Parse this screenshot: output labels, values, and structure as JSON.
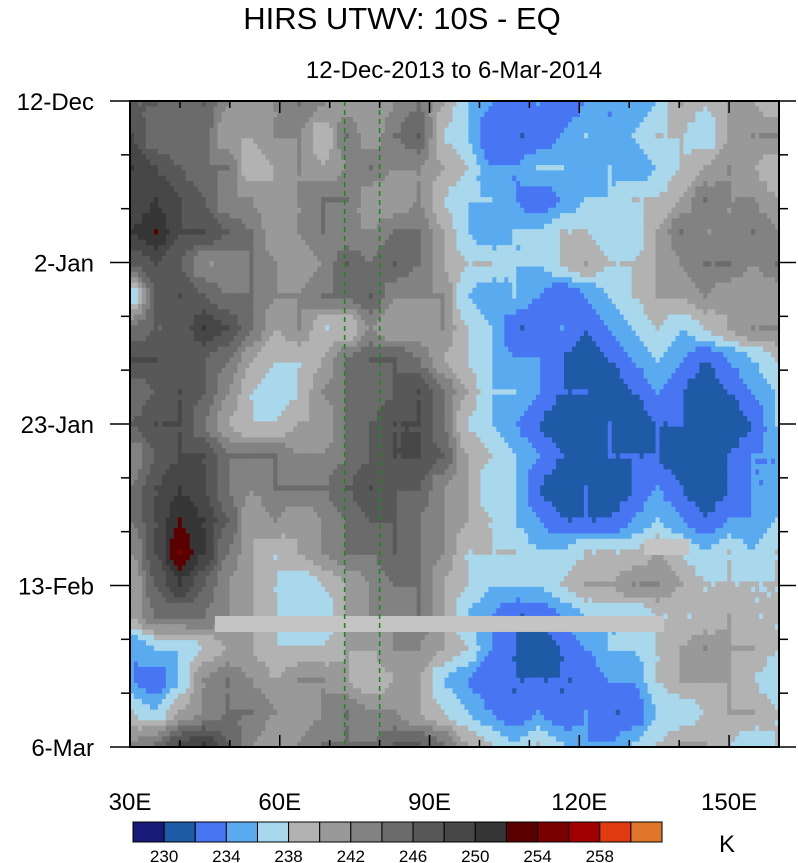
{
  "chart_data": {
    "type": "heatmap",
    "title": "HIRS UTWV: 10S - EQ",
    "subtitle": "12-Dec-2013 to 6-Mar-2014",
    "xlabel": "",
    "ylabel": "",
    "x_range": [
      30,
      160
    ],
    "x_ticks": [
      {
        "value": 30,
        "label": "30E"
      },
      {
        "value": 60,
        "label": "60E"
      },
      {
        "value": 90,
        "label": "90E"
      },
      {
        "value": 120,
        "label": "120E"
      },
      {
        "value": 150,
        "label": "150E"
      }
    ],
    "y_range_days": [
      0,
      84
    ],
    "y_ticks": [
      {
        "day": 0,
        "label": "12-Dec"
      },
      {
        "day": 21,
        "label": "2-Jan"
      },
      {
        "day": 42,
        "label": "23-Jan"
      },
      {
        "day": 63,
        "label": "13-Feb"
      },
      {
        "day": 84,
        "label": "6-Mar"
      }
    ],
    "reference_lines_lon": [
      73,
      80
    ],
    "missing_bars": [
      {
        "lon_start": 47,
        "lon_end": 137,
        "day": 68
      },
      {
        "lon_start": 133,
        "lon_end": 142,
        "day": 58
      }
    ],
    "colorbar": {
      "unit": "K",
      "levels": [
        228,
        230,
        232,
        234,
        236,
        238,
        240,
        242,
        244,
        246,
        248,
        250,
        252,
        254,
        256,
        258,
        260
      ],
      "labeled_levels": [
        "230",
        "234",
        "238",
        "242",
        "246",
        "250",
        "254",
        "258"
      ],
      "colors": [
        "#1a1a7a",
        "#1f5aa6",
        "#4876f2",
        "#5aaaf0",
        "#a9d8ec",
        "#b2b2b2",
        "#999999",
        "#828282",
        "#6b6b6b",
        "#585858",
        "#474747",
        "#363636",
        "#5a0000",
        "#7a0000",
        "#a00000",
        "#e03a10",
        "#e0762a"
      ]
    },
    "field": [
      [
        246,
        246,
        244,
        246,
        242,
        240,
        242,
        244,
        242,
        241,
        240,
        242,
        244,
        240,
        236,
        234,
        232,
        234,
        232,
        234,
        234,
        234,
        236,
        240,
        238,
        240,
        240,
        238
      ],
      [
        248,
        244,
        244,
        245,
        240,
        240,
        242,
        242,
        238,
        244,
        240,
        244,
        246,
        238,
        236,
        232,
        232,
        232,
        234,
        236,
        234,
        236,
        238,
        238,
        236,
        240,
        242,
        242
      ],
      [
        250,
        248,
        246,
        244,
        244,
        238,
        240,
        242,
        240,
        242,
        244,
        242,
        242,
        240,
        238,
        234,
        234,
        236,
        236,
        234,
        236,
        234,
        236,
        238,
        240,
        242,
        240,
        238
      ],
      [
        248,
        250,
        248,
        246,
        242,
        242,
        240,
        242,
        244,
        244,
        240,
        240,
        242,
        238,
        236,
        236,
        234,
        232,
        234,
        236,
        236,
        238,
        238,
        240,
        244,
        242,
        242,
        240
      ],
      [
        250,
        252,
        248,
        248,
        246,
        244,
        240,
        242,
        244,
        242,
        242,
        244,
        244,
        240,
        236,
        234,
        236,
        236,
        238,
        238,
        236,
        236,
        240,
        244,
        242,
        242,
        244,
        242
      ],
      [
        246,
        248,
        246,
        242,
        242,
        244,
        242,
        240,
        242,
        246,
        244,
        246,
        244,
        240,
        238,
        238,
        236,
        236,
        238,
        240,
        238,
        238,
        240,
        242,
        244,
        244,
        242,
        244
      ],
      [
        236,
        246,
        248,
        246,
        244,
        244,
        242,
        242,
        244,
        244,
        246,
        242,
        242,
        242,
        236,
        234,
        236,
        234,
        232,
        234,
        236,
        238,
        240,
        240,
        242,
        240,
        240,
        240
      ],
      [
        244,
        246,
        246,
        250,
        248,
        244,
        240,
        242,
        238,
        238,
        242,
        240,
        240,
        242,
        238,
        236,
        232,
        232,
        234,
        232,
        234,
        236,
        238,
        236,
        238,
        240,
        242,
        242
      ],
      [
        248,
        248,
        246,
        246,
        244,
        240,
        238,
        238,
        240,
        244,
        246,
        246,
        244,
        240,
        238,
        236,
        234,
        234,
        232,
        230,
        232,
        234,
        236,
        234,
        232,
        234,
        236,
        238
      ],
      [
        244,
        246,
        248,
        246,
        242,
        238,
        236,
        238,
        242,
        244,
        244,
        246,
        248,
        244,
        240,
        236,
        236,
        234,
        232,
        232,
        230,
        232,
        234,
        232,
        230,
        232,
        234,
        236
      ],
      [
        246,
        248,
        248,
        244,
        240,
        238,
        238,
        240,
        240,
        244,
        246,
        248,
        248,
        244,
        238,
        236,
        234,
        232,
        230,
        230,
        232,
        230,
        232,
        232,
        230,
        230,
        232,
        236
      ],
      [
        242,
        246,
        248,
        248,
        244,
        244,
        244,
        242,
        242,
        244,
        246,
        248,
        248,
        246,
        240,
        238,
        236,
        234,
        232,
        230,
        232,
        232,
        232,
        230,
        230,
        232,
        234,
        234
      ],
      [
        244,
        248,
        250,
        248,
        244,
        242,
        244,
        244,
        244,
        246,
        248,
        246,
        246,
        242,
        240,
        236,
        236,
        232,
        230,
        232,
        230,
        232,
        234,
        232,
        230,
        232,
        234,
        234
      ],
      [
        244,
        248,
        252,
        250,
        246,
        240,
        242,
        240,
        242,
        244,
        246,
        246,
        244,
        242,
        240,
        238,
        236,
        234,
        232,
        232,
        232,
        234,
        236,
        234,
        232,
        234,
        234,
        236
      ],
      [
        242,
        248,
        254,
        250,
        244,
        240,
        238,
        240,
        242,
        244,
        244,
        246,
        244,
        242,
        238,
        238,
        238,
        236,
        236,
        238,
        238,
        238,
        240,
        238,
        236,
        238,
        236,
        238
      ],
      [
        240,
        246,
        250,
        246,
        242,
        240,
        238,
        236,
        238,
        240,
        242,
        244,
        244,
        240,
        238,
        236,
        236,
        236,
        238,
        240,
        240,
        242,
        242,
        240,
        238,
        238,
        238,
        238
      ],
      [
        240,
        244,
        244,
        244,
        242,
        240,
        238,
        236,
        236,
        240,
        242,
        242,
        244,
        240,
        236,
        234,
        232,
        232,
        234,
        236,
        236,
        236,
        238,
        238,
        238,
        240,
        238,
        238
      ],
      [
        234,
        236,
        236,
        238,
        240,
        240,
        238,
        238,
        238,
        240,
        240,
        242,
        242,
        240,
        238,
        234,
        232,
        230,
        232,
        234,
        236,
        236,
        238,
        240,
        242,
        240,
        240,
        238
      ],
      [
        234,
        232,
        236,
        242,
        244,
        242,
        240,
        242,
        242,
        240,
        238,
        240,
        240,
        236,
        234,
        232,
        232,
        232,
        232,
        232,
        234,
        234,
        238,
        240,
        240,
        240,
        238,
        236
      ],
      [
        238,
        236,
        240,
        242,
        244,
        244,
        242,
        240,
        242,
        244,
        242,
        242,
        240,
        238,
        236,
        234,
        232,
        234,
        232,
        234,
        232,
        232,
        236,
        236,
        238,
        240,
        240,
        238
      ],
      [
        242,
        244,
        248,
        250,
        246,
        242,
        240,
        242,
        244,
        244,
        244,
        246,
        246,
        244,
        240,
        238,
        236,
        238,
        236,
        234,
        234,
        236,
        238,
        240,
        240,
        238,
        236,
        238
      ]
    ]
  }
}
